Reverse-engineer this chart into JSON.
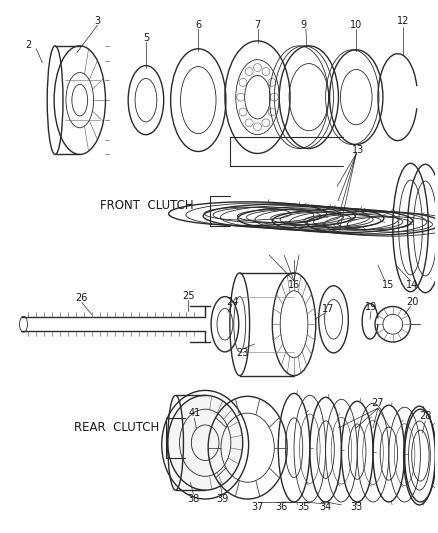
{
  "bg_color": "#ffffff",
  "line_color": "#2a2a2a",
  "text_color": "#1a1a1a",
  "front_clutch_label": "FRONT  CLUTCH",
  "rear_clutch_label": "REAR  CLUTCH",
  "figsize": [
    4.38,
    5.33
  ],
  "dpi": 100
}
